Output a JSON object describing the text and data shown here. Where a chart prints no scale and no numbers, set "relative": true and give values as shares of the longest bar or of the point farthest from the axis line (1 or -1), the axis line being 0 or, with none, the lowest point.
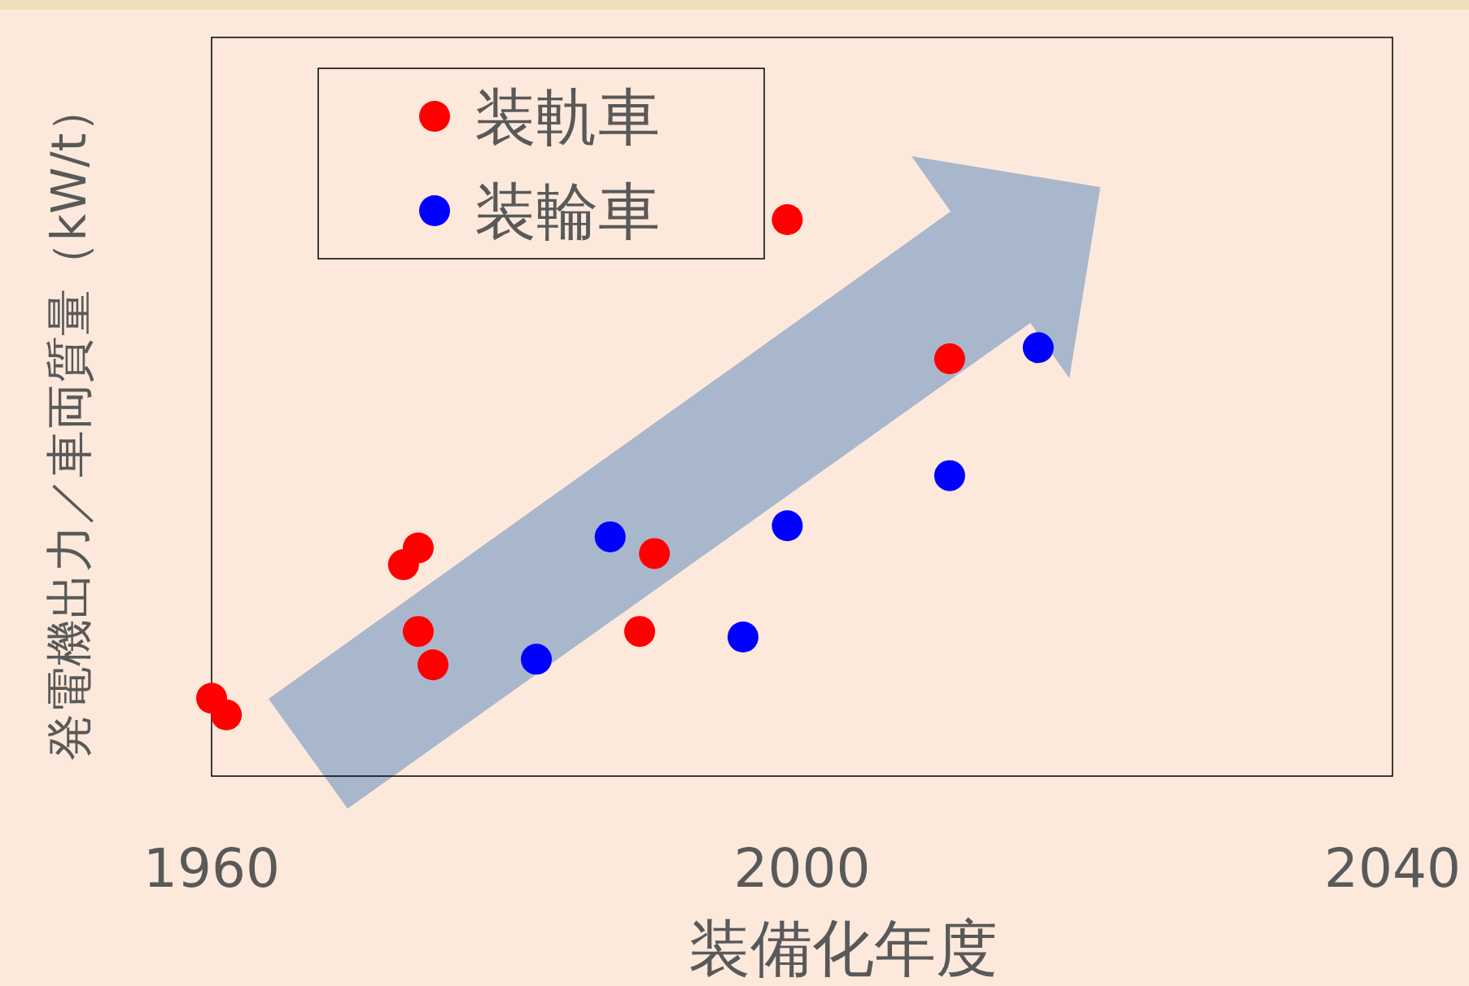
{
  "chart_data": {
    "type": "scatter",
    "relative": true,
    "xlabel": "装備化年度",
    "ylabel": "発電機出力／車両質量（kW/t）",
    "xlim": [
      1960,
      2040
    ],
    "xticks": [
      1960,
      2000,
      2040
    ],
    "legend": "top left",
    "marker": "circle",
    "series": [
      {
        "name": "装軌車",
        "color": "#ff0000",
        "x": [
          1960,
          1961,
          1973,
          1974,
          1974,
          1975,
          1989,
          1990,
          1999,
          2010
        ],
        "values": [
          0.14,
          0.11,
          0.38,
          0.41,
          0.26,
          0.2,
          0.26,
          0.4,
          1.0,
          0.75
        ]
      },
      {
        "name": "装輪車",
        "color": "#0000ff",
        "x": [
          1982,
          1987,
          1996,
          1999,
          2010,
          2016
        ],
        "values": [
          0.21,
          0.43,
          0.25,
          0.45,
          0.54,
          0.77
        ]
      }
    ]
  }
}
